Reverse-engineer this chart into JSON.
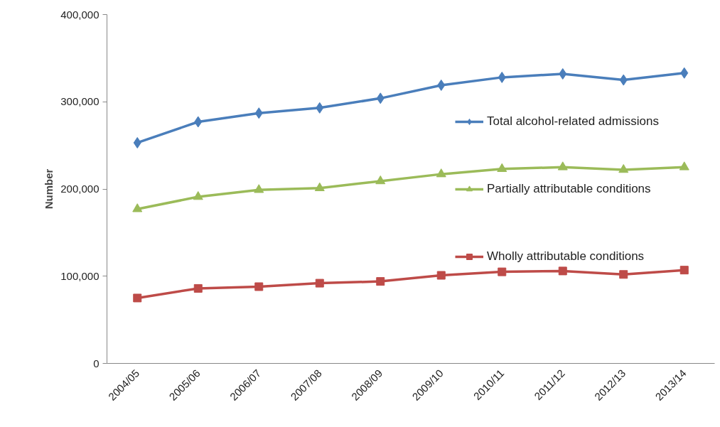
{
  "chart_data": {
    "type": "line",
    "ylabel": "Number",
    "categories": [
      "2004/05",
      "2005/06",
      "2006/07",
      "2007/08",
      "2008/09",
      "2009/10",
      "2010/11",
      "2011/12",
      "2012/13",
      "2013/14"
    ],
    "series": [
      {
        "name": "Total alcohol-related admissions",
        "color": "#4a7ebb",
        "marker": "diamond",
        "values": [
          253000,
          277000,
          287000,
          293000,
          304000,
          319000,
          328000,
          332000,
          325000,
          333000
        ]
      },
      {
        "name": "Partially attributable conditions",
        "color": "#9bbb59",
        "marker": "triangle",
        "values": [
          177000,
          191000,
          199000,
          201000,
          209000,
          217000,
          223000,
          225000,
          222000,
          225000
        ]
      },
      {
        "name": "Wholly attributable conditions",
        "color": "#be4b48",
        "marker": "square",
        "values": [
          75000,
          86000,
          88000,
          92000,
          94000,
          101000,
          105000,
          106000,
          102000,
          107000
        ]
      }
    ],
    "legend": "right",
    "ylim": [
      0,
      400000
    ],
    "yticks": [
      {
        "value": 0,
        "label": "0"
      },
      {
        "value": 100000,
        "label": "100,000"
      },
      {
        "value": 200000,
        "label": "200,000"
      },
      {
        "value": 300000,
        "label": "300,000"
      },
      {
        "value": 400000,
        "label": "400,000"
      }
    ]
  }
}
